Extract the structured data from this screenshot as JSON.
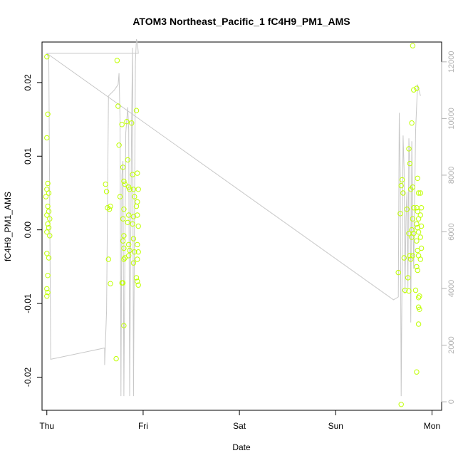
{
  "chart_data": {
    "type": "scatter",
    "title": "ATOM3 Northeast_Pacific_1 fC4H9_PM1_AMS",
    "xlabel": "Date",
    "ylabel": "fC4H9_PM1_AMS",
    "x_ticks": [
      "Thu",
      "Fri",
      "Sat",
      "Sun",
      "Mon"
    ],
    "xlim": [
      -0.05,
      4.1
    ],
    "ylim": [
      -0.0245,
      0.0255
    ],
    "y_ticks": [
      -0.02,
      -0.01,
      0.0,
      0.01,
      0.02
    ],
    "y_tick_labels": [
      "-0.02",
      "-0.01",
      "0.00",
      "0.01",
      "0.02"
    ],
    "y2_ticks": [
      0,
      2000,
      4000,
      6000,
      8000,
      10000,
      12000
    ],
    "y2lim": [
      -300,
      12700
    ],
    "grid": false,
    "legend": "none",
    "colors": {
      "points": "#bfff00",
      "line": "#c8c8c8",
      "axis": "#000000",
      "right_axis": "#b0b0b0"
    },
    "series": [
      {
        "type": "scatter",
        "points": [
          [
            0.0,
            0.0235
          ],
          [
            0.01,
            0.0157
          ],
          [
            0.0,
            0.0125
          ],
          [
            0.01,
            0.0063
          ],
          [
            0.0,
            0.0055
          ],
          [
            0.02,
            0.005
          ],
          [
            -0.01,
            0.0045
          ],
          [
            0.01,
            0.0032
          ],
          [
            0.02,
            0.0025
          ],
          [
            0.0,
            0.002
          ],
          [
            0.03,
            0.0015
          ],
          [
            0.01,
            0.0008
          ],
          [
            0.02,
            0.0003
          ],
          [
            0.0,
            -0.0003
          ],
          [
            0.03,
            -0.0008
          ],
          [
            0.0,
            -0.0032
          ],
          [
            0.02,
            -0.0038
          ],
          [
            0.01,
            -0.0062
          ],
          [
            0.0,
            -0.008
          ],
          [
            0.01,
            -0.0085
          ],
          [
            0.0,
            -0.009
          ],
          [
            0.61,
            0.0062
          ],
          [
            0.62,
            0.0052
          ],
          [
            0.63,
            0.003
          ],
          [
            0.65,
            0.0028
          ],
          [
            0.66,
            0.0032
          ],
          [
            0.64,
            -0.004
          ],
          [
            0.66,
            -0.0073
          ],
          [
            0.73,
            0.023
          ],
          [
            0.74,
            0.0168
          ],
          [
            0.75,
            0.0115
          ],
          [
            0.72,
            -0.0175
          ],
          [
            0.76,
            0.0045
          ],
          [
            0.78,
            0.0143
          ],
          [
            0.79,
            0.0085
          ],
          [
            0.8,
            0.0066
          ],
          [
            0.81,
            0.0062
          ],
          [
            0.8,
            0.0028
          ],
          [
            0.79,
            0.0015
          ],
          [
            0.8,
            -0.0008
          ],
          [
            0.79,
            -0.0015
          ],
          [
            0.8,
            -0.0025
          ],
          [
            0.81,
            -0.0038
          ],
          [
            0.8,
            -0.004
          ],
          [
            0.78,
            -0.0072
          ],
          [
            0.79,
            -0.0072
          ],
          [
            0.8,
            -0.013
          ],
          [
            0.83,
            0.0147
          ],
          [
            0.84,
            0.0095
          ],
          [
            0.85,
            0.0058
          ],
          [
            0.86,
            0.0055
          ],
          [
            0.85,
            0.002
          ],
          [
            0.84,
            0.001
          ],
          [
            0.85,
            -0.002
          ],
          [
            0.86,
            -0.0028
          ],
          [
            0.85,
            -0.0035
          ],
          [
            0.88,
            0.0145
          ],
          [
            0.89,
            0.0075
          ],
          [
            0.9,
            0.0055
          ],
          [
            0.91,
            0.0045
          ],
          [
            0.9,
            0.0018
          ],
          [
            0.89,
            0.0008
          ],
          [
            0.9,
            -0.0012
          ],
          [
            0.91,
            -0.003
          ],
          [
            0.9,
            -0.0045
          ],
          [
            0.93,
            0.0162
          ],
          [
            0.94,
            0.0077
          ],
          [
            0.95,
            0.0055
          ],
          [
            0.94,
            0.0038
          ],
          [
            0.93,
            0.0032
          ],
          [
            0.94,
            0.002
          ],
          [
            0.95,
            0.0005
          ],
          [
            0.94,
            -0.002
          ],
          [
            0.95,
            -0.003
          ],
          [
            0.94,
            -0.004
          ],
          [
            0.93,
            -0.0065
          ],
          [
            0.94,
            -0.007
          ],
          [
            0.95,
            -0.0075
          ],
          [
            3.65,
            -0.0058
          ],
          [
            3.67,
            0.0022
          ],
          [
            3.69,
            0.0068
          ],
          [
            3.68,
            0.006
          ],
          [
            3.7,
            0.005
          ],
          [
            3.71,
            -0.0038
          ],
          [
            3.72,
            -0.0082
          ],
          [
            3.68,
            -0.0237
          ],
          [
            3.74,
            0.0028
          ],
          [
            3.75,
            -0.0065
          ],
          [
            3.76,
            0.011
          ],
          [
            3.77,
            0.009
          ],
          [
            3.78,
            0.0055
          ],
          [
            3.76,
            -0.0005
          ],
          [
            3.77,
            -0.0035
          ],
          [
            3.78,
            -0.004
          ],
          [
            3.76,
            -0.0083
          ],
          [
            3.79,
            -0.001
          ],
          [
            3.8,
            0.025
          ],
          [
            3.81,
            0.019
          ],
          [
            3.79,
            0.0145
          ],
          [
            3.8,
            0.0058
          ],
          [
            3.81,
            0.003
          ],
          [
            3.8,
            0.0015
          ],
          [
            3.79,
            0.0
          ],
          [
            3.8,
            -0.0035
          ],
          [
            3.81,
            -0.0005
          ],
          [
            3.84,
            0.0192
          ],
          [
            3.85,
            0.007
          ],
          [
            3.86,
            0.005
          ],
          [
            3.84,
            0.003
          ],
          [
            3.85,
            0.0025
          ],
          [
            3.86,
            0.0015
          ],
          [
            3.84,
            0.0008
          ],
          [
            3.85,
            0.0003
          ],
          [
            3.86,
            -0.0003
          ],
          [
            3.84,
            -0.0015
          ],
          [
            3.85,
            -0.0028
          ],
          [
            3.86,
            -0.0035
          ],
          [
            3.84,
            -0.005
          ],
          [
            3.85,
            -0.0055
          ],
          [
            3.83,
            -0.0082
          ],
          [
            3.84,
            -0.0193
          ],
          [
            3.86,
            -0.0092
          ],
          [
            3.87,
            -0.009
          ],
          [
            3.86,
            -0.0105
          ],
          [
            3.87,
            -0.0108
          ],
          [
            3.86,
            -0.0128
          ],
          [
            3.88,
            0.005
          ],
          [
            3.89,
            0.003
          ],
          [
            3.88,
            0.002
          ],
          [
            3.89,
            0.0005
          ],
          [
            3.88,
            -0.001
          ],
          [
            3.89,
            -0.0025
          ],
          [
            3.88,
            -0.004
          ]
        ]
      },
      {
        "type": "line",
        "axis": "right",
        "points": [
          [
            0.0,
            12300
          ],
          [
            0.02,
            12100
          ],
          [
            0.04,
            1500
          ],
          [
            0.6,
            1900
          ],
          [
            0.6,
            1300
          ],
          [
            0.62,
            3200
          ],
          [
            0.64,
            10800
          ],
          [
            0.7,
            11000
          ],
          [
            0.74,
            11200
          ],
          [
            0.75,
            11600
          ],
          [
            0.76,
            10000
          ],
          [
            0.77,
            200
          ],
          [
            0.78,
            8000
          ],
          [
            0.79,
            8500
          ],
          [
            0.8,
            200
          ],
          [
            0.82,
            9500
          ],
          [
            0.84,
            10400
          ],
          [
            0.85,
            9600
          ],
          [
            0.86,
            200
          ],
          [
            0.88,
            9800
          ],
          [
            0.89,
            12500
          ],
          [
            0.9,
            200
          ],
          [
            0.92,
            12000
          ],
          [
            0.93,
            12800
          ],
          [
            0.94,
            12700
          ],
          [
            0.95,
            12300
          ],
          [
            0.95,
            12300
          ],
          [
            0.95,
            12300
          ],
          [
            0.0,
            12300
          ],
          [
            3.6,
            3600
          ],
          [
            3.65,
            3700
          ],
          [
            3.66,
            10200
          ],
          [
            3.67,
            8000
          ],
          [
            3.68,
            200
          ],
          [
            3.7,
            9400
          ],
          [
            3.71,
            8200
          ],
          [
            3.72,
            3800
          ],
          [
            3.73,
            6500
          ],
          [
            3.74,
            7400
          ],
          [
            3.75,
            4000
          ],
          [
            3.76,
            9300
          ],
          [
            3.77,
            8300
          ],
          [
            3.78,
            2800
          ],
          [
            3.79,
            9200
          ],
          [
            3.8,
            6800
          ],
          [
            3.81,
            4700
          ],
          [
            3.83,
            9600
          ],
          [
            3.85,
            11200
          ],
          [
            3.88,
            10800
          ]
        ]
      }
    ]
  }
}
